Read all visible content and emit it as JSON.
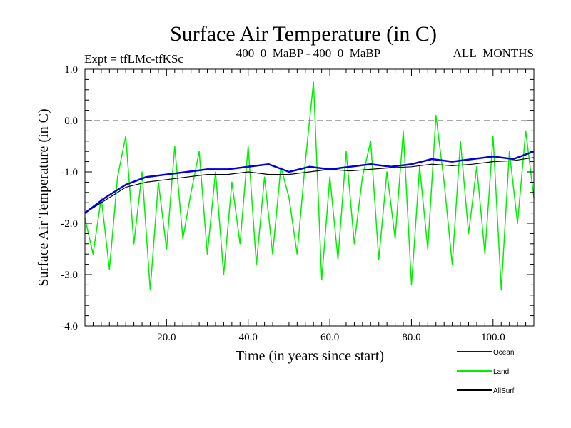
{
  "chart_data": {
    "type": "line",
    "title": "Surface Air Temperature (in C)",
    "subtitle_left": "Expt = tfLMc-tfKSc",
    "subtitle_center": "400_0_MaBP - 400_0_MaBP",
    "subtitle_right": "ALL_MONTHS",
    "xlabel": "Time (in years since start)",
    "ylabel": "Surface Air Temperature (in C)",
    "xlim": [
      0,
      110
    ],
    "ylim": [
      -4.0,
      1.0
    ],
    "xticks": [
      20,
      40,
      60,
      80,
      100
    ],
    "xtick_labels": [
      "20.0",
      "40.0",
      "60.0",
      "80.0",
      "100.0"
    ],
    "yticks": [
      1.0,
      0.0,
      -1.0,
      -2.0,
      -3.0,
      -4.0
    ],
    "ytick_labels": [
      "1.0",
      "0.0",
      "-1.0",
      "-2.0",
      "-3.0",
      "-4.0"
    ],
    "reference_line": 0.0,
    "series": [
      {
        "name": "Land",
        "color": "#00ee00",
        "x": [
          0,
          2,
          4,
          6,
          8,
          10,
          12,
          14,
          16,
          18,
          20,
          22,
          24,
          26,
          28,
          30,
          32,
          34,
          36,
          38,
          40,
          42,
          44,
          46,
          48,
          50,
          52,
          54,
          56,
          58,
          60,
          62,
          64,
          66,
          68,
          70,
          72,
          74,
          76,
          78,
          80,
          82,
          84,
          86,
          88,
          90,
          92,
          94,
          96,
          98,
          100,
          102,
          104,
          106,
          108,
          110
        ],
        "values": [
          -1.9,
          -2.6,
          -1.5,
          -2.9,
          -1.1,
          -0.3,
          -2.4,
          -1.0,
          -3.3,
          -1.2,
          -2.5,
          -0.5,
          -2.3,
          -1.4,
          -0.6,
          -2.6,
          -1.0,
          -3.0,
          -1.2,
          -2.4,
          -0.5,
          -2.8,
          -1.1,
          -2.6,
          -0.9,
          -1.5,
          -2.6,
          -0.8,
          0.75,
          -3.1,
          -1.1,
          -2.7,
          -0.6,
          -2.4,
          -1.1,
          -0.4,
          -2.7,
          -1.0,
          -2.3,
          -0.2,
          -3.2,
          -0.9,
          -2.5,
          0.1,
          -1.2,
          -2.8,
          -0.4,
          -2.2,
          -0.9,
          -2.6,
          -0.3,
          -3.3,
          -0.6,
          -2.0,
          -0.2,
          -1.5
        ]
      },
      {
        "name": "AllSurf",
        "color": "#000000",
        "x": [
          0,
          5,
          10,
          15,
          20,
          25,
          30,
          35,
          40,
          45,
          50,
          55,
          60,
          65,
          70,
          75,
          80,
          85,
          90,
          95,
          100,
          105,
          110
        ],
        "values": [
          -1.8,
          -1.55,
          -1.3,
          -1.2,
          -1.15,
          -1.1,
          -1.05,
          -1.05,
          -1.0,
          -1.05,
          -1.05,
          -1.0,
          -0.95,
          -0.98,
          -0.95,
          -0.92,
          -0.9,
          -0.85,
          -0.88,
          -0.85,
          -0.8,
          -0.78,
          -0.72
        ]
      },
      {
        "name": "Ocean",
        "color": "#0000dd",
        "x": [
          0,
          5,
          10,
          15,
          20,
          25,
          30,
          35,
          40,
          45,
          50,
          55,
          60,
          65,
          70,
          75,
          80,
          85,
          90,
          95,
          100,
          105,
          110
        ],
        "values": [
          -1.8,
          -1.5,
          -1.25,
          -1.1,
          -1.05,
          -1.0,
          -0.95,
          -0.95,
          -0.9,
          -0.85,
          -1.0,
          -0.9,
          -0.95,
          -0.9,
          -0.85,
          -0.9,
          -0.85,
          -0.75,
          -0.8,
          -0.75,
          -0.7,
          -0.75,
          -0.6
        ]
      }
    ]
  }
}
